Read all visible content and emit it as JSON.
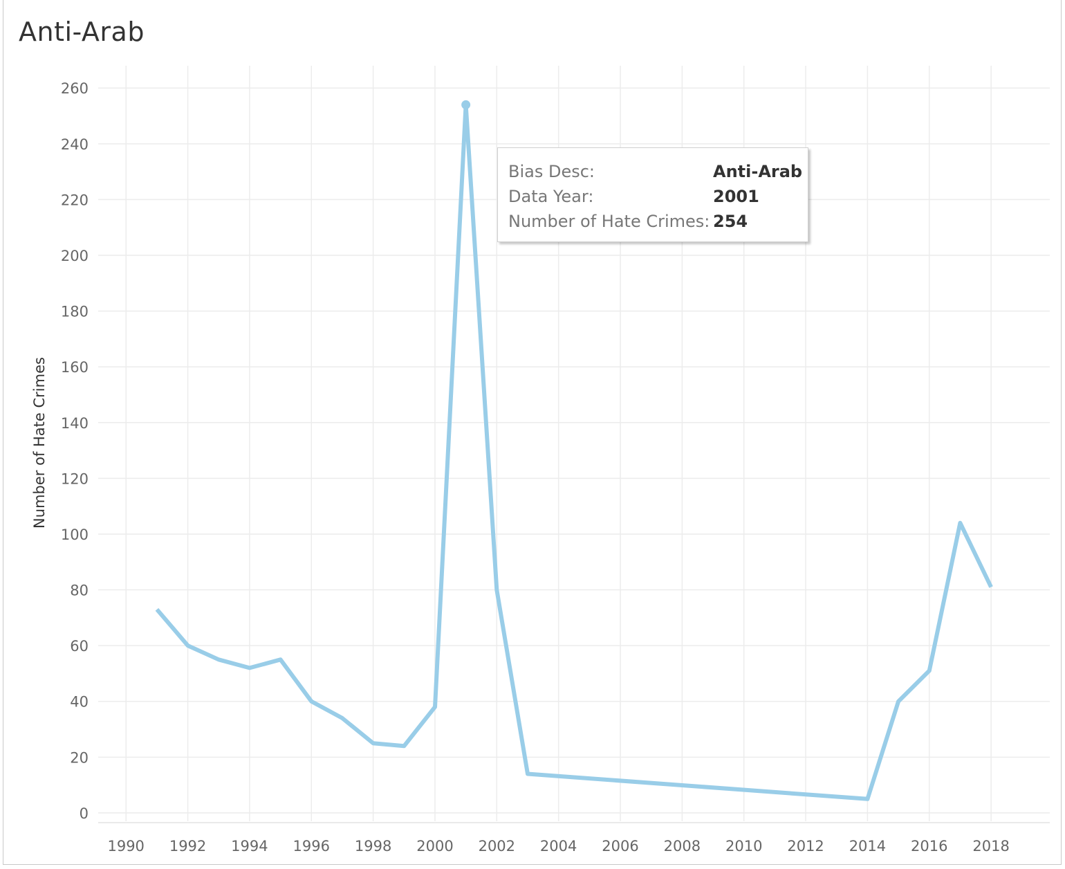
{
  "title": "Anti-Arab",
  "tooltip": {
    "rows": [
      {
        "label": "Bias Desc:",
        "value": "Anti-Arab"
      },
      {
        "label": "Data Year:",
        "value": "2001"
      },
      {
        "label": "Number of Hate Crimes:",
        "value": "254"
      }
    ]
  },
  "colors": {
    "line": "#99cde8",
    "grid": "#ececec",
    "tick_text": "#666666",
    "title_text": "#333333"
  },
  "chart_data": {
    "type": "line",
    "title": "Anti-Arab",
    "xlabel": "",
    "ylabel": "Number of Hate Crimes",
    "x_ticks": [
      1990,
      1992,
      1994,
      1996,
      1998,
      2000,
      2002,
      2004,
      2006,
      2008,
      2010,
      2012,
      2014,
      2016,
      2018
    ],
    "y_ticks": [
      0,
      20,
      40,
      60,
      80,
      100,
      120,
      140,
      160,
      180,
      200,
      220,
      240,
      260
    ],
    "xlim": [
      1989.1,
      2019.9
    ],
    "ylim": [
      -3,
      268
    ],
    "grid": true,
    "highlight": {
      "x": 2001,
      "y": 254
    },
    "series": [
      {
        "x": [
          1991,
          1992,
          1993,
          1994,
          1995,
          1996,
          1997,
          1998,
          1999,
          2000,
          2001,
          2002,
          2003,
          2014,
          2015,
          2016,
          2017,
          2018
        ],
        "values": [
          73,
          60,
          55,
          52,
          55,
          40,
          34,
          25,
          24,
          38,
          254,
          80,
          14,
          5,
          40,
          51,
          104,
          81
        ]
      }
    ]
  }
}
